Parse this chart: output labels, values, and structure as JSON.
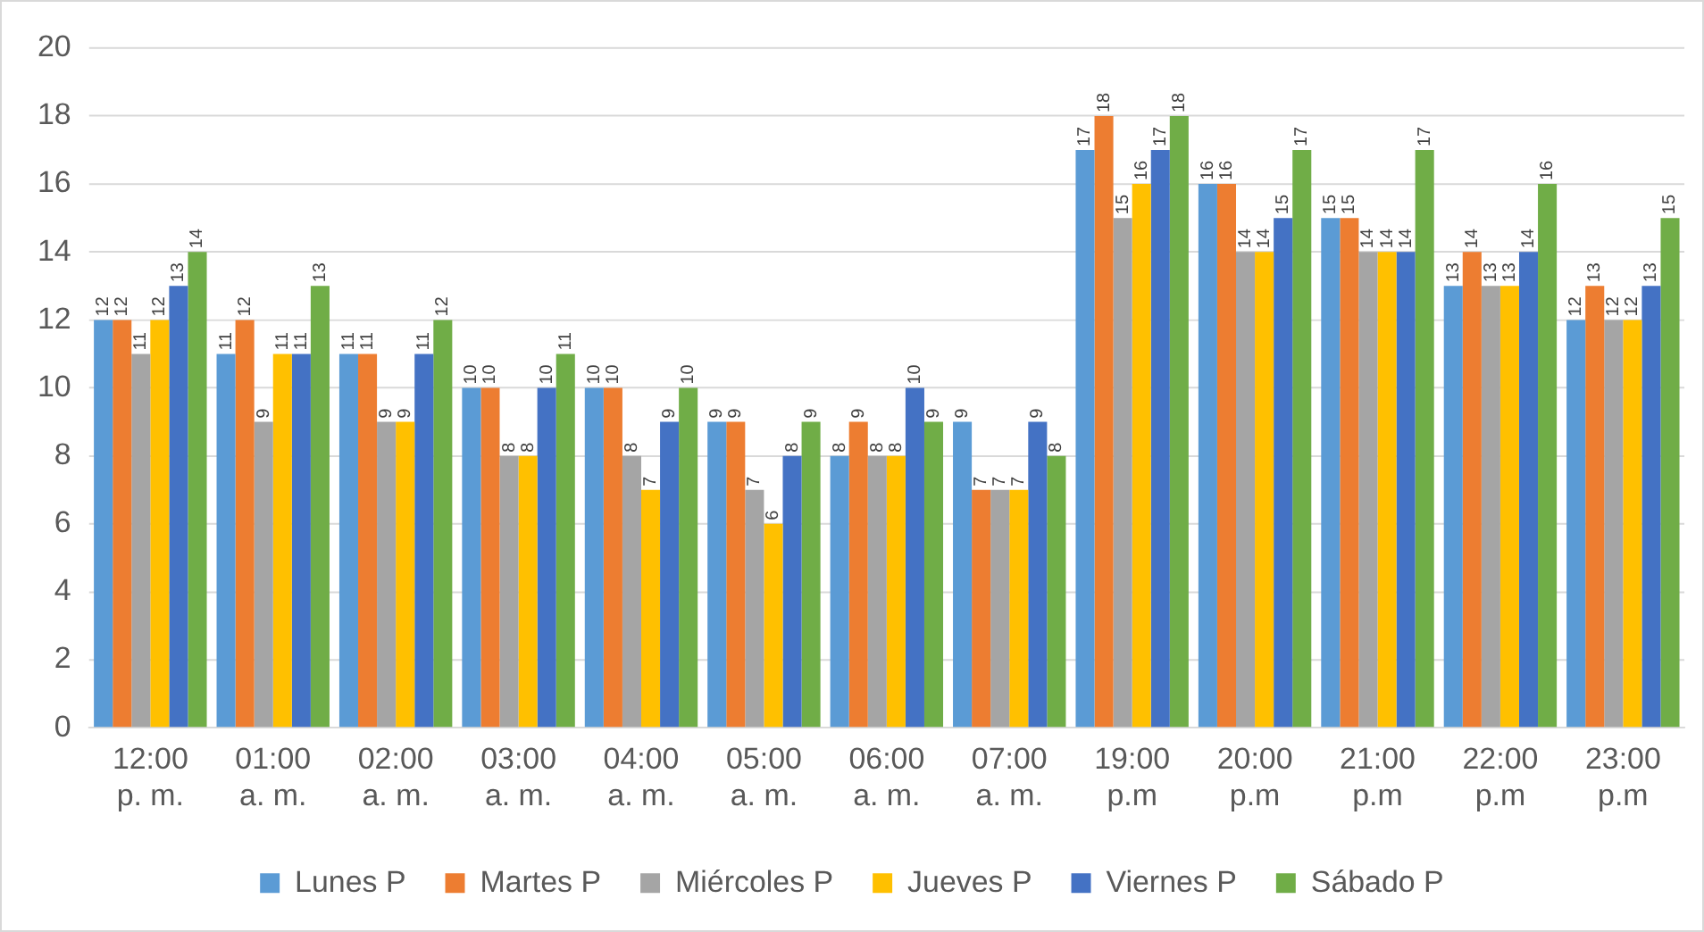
{
  "chart_data": {
    "type": "bar",
    "categories": [
      "12:00 p. m.",
      "01:00 a. m.",
      "02:00 a. m.",
      "03:00 a. m.",
      "04:00 a. m.",
      "05:00 a. m.",
      "06:00 a. m.",
      "07:00 a. m.",
      "19:00 p.m",
      "20:00 p.m",
      "21:00 p.m",
      "22:00 p.m",
      "23:00 p.m"
    ],
    "series": [
      {
        "name": "Lunes P",
        "color": "#5b9bd5",
        "values": [
          12,
          11,
          11,
          10,
          10,
          9,
          8,
          9,
          17,
          16,
          15,
          13,
          12
        ]
      },
      {
        "name": "Martes P",
        "color": "#ed7d31",
        "values": [
          12,
          12,
          11,
          10,
          10,
          9,
          9,
          7,
          18,
          16,
          15,
          14,
          13
        ]
      },
      {
        "name": "Miércoles P",
        "color": "#a5a5a5",
        "values": [
          11,
          9,
          9,
          8,
          8,
          7,
          8,
          7,
          15,
          14,
          14,
          13,
          12
        ]
      },
      {
        "name": "Jueves P",
        "color": "#ffc000",
        "values": [
          12,
          11,
          9,
          8,
          7,
          6,
          8,
          7,
          16,
          14,
          14,
          13,
          12
        ]
      },
      {
        "name": "Viernes P",
        "color": "#4472c4",
        "values": [
          13,
          11,
          11,
          10,
          9,
          8,
          10,
          9,
          17,
          15,
          14,
          14,
          13
        ]
      },
      {
        "name": "Sábado P",
        "color": "#70ad47",
        "values": [
          14,
          13,
          12,
          11,
          10,
          9,
          9,
          8,
          18,
          17,
          17,
          16,
          15
        ]
      }
    ],
    "ylim": [
      0,
      20
    ],
    "yticks": [
      0,
      2,
      4,
      6,
      8,
      10,
      12,
      14,
      16,
      18,
      20
    ],
    "grid": "y",
    "legend": "bottom",
    "data_labels": true
  }
}
